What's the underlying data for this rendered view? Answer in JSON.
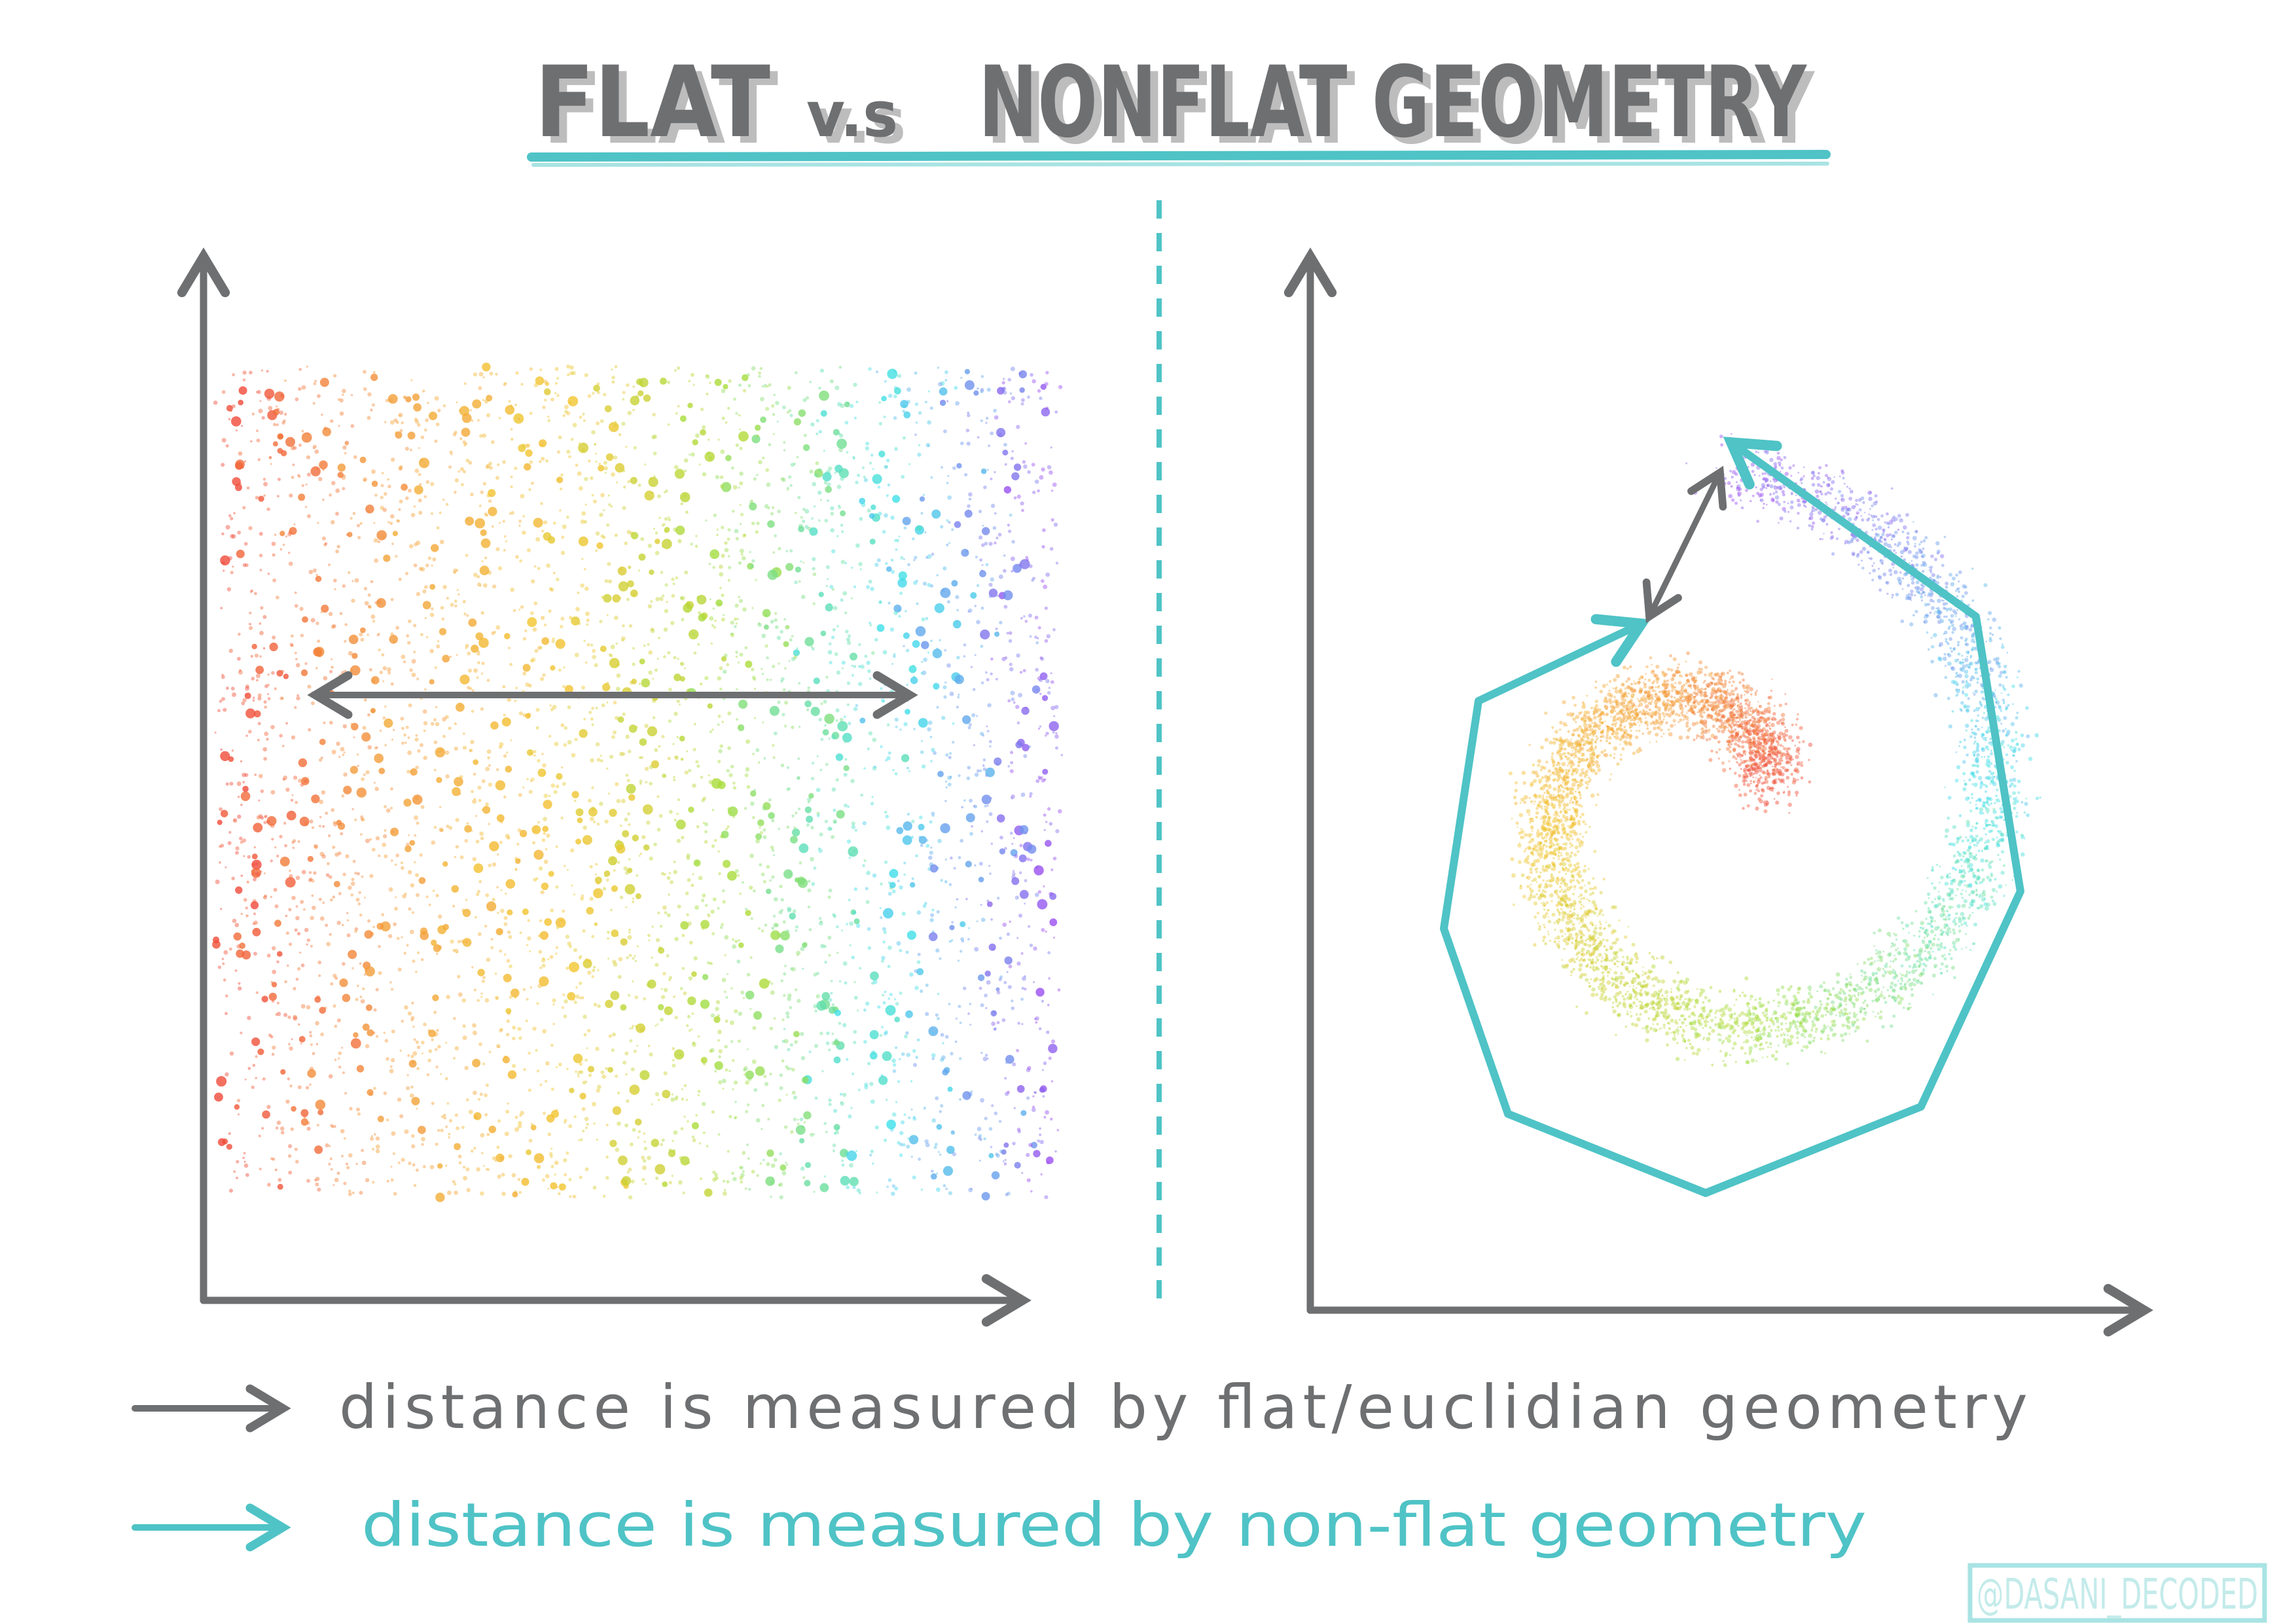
{
  "title": {
    "part1": "FLAT",
    "part2": "v.s",
    "part3": "NONFLAT GEOMETRY"
  },
  "legend": [
    {
      "text": "distance is measured by flat/euclidian geometry",
      "color": "#6e6f71",
      "icon": "gray-arrow-icon"
    },
    {
      "text": "distance is measured by non-flat geometry",
      "color": "#4fc3c6",
      "icon": "teal-arrow-icon"
    }
  ],
  "watermark": "@DASANI_DECODED",
  "colors": {
    "axis": "#6e6f71",
    "accent": "#4fc3c6",
    "spectrum": [
      "#f04a3a",
      "#f39a3a",
      "#f2c52e",
      "#a7dd3a",
      "#3ee0ea",
      "#9a4ff0"
    ]
  },
  "panels": {
    "left": {
      "kind": "flat",
      "description_arrow": "euclidean"
    },
    "right": {
      "kind": "spiral",
      "description_arrow": "geodesic"
    }
  }
}
